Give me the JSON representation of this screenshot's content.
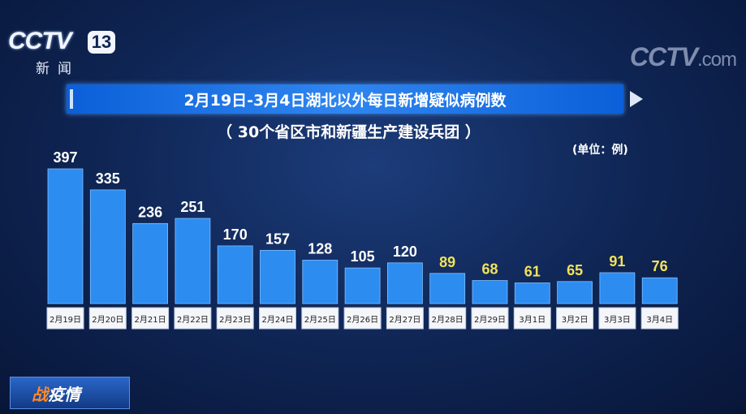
{
  "logo_left": {
    "brand": "CCTV",
    "channel": "13",
    "sub": "新闻"
  },
  "logo_right": {
    "brand": "CCTV",
    "suffix": ".com"
  },
  "bottom_logo": {
    "first": "战",
    "rest": "疫情"
  },
  "chart_data": {
    "type": "bar",
    "title": "2月19日-3月4日湖北以外每日新增疑似病例数",
    "subtitle": "（ 30个省区市和新疆生产建设兵团 ）",
    "unit": "(单位：例)",
    "categories": [
      "2月19日",
      "2月20日",
      "2月21日",
      "2月22日",
      "2月23日",
      "2月24日",
      "2月25日",
      "2月26日",
      "2月27日",
      "2月28日",
      "2月29日",
      "3月1日",
      "3月2日",
      "3月3日",
      "3月4日"
    ],
    "values": [
      397,
      335,
      236,
      251,
      170,
      157,
      128,
      105,
      120,
      89,
      68,
      61,
      65,
      91,
      76
    ],
    "label_colors": [
      "#ffffff",
      "#ffffff",
      "#ffffff",
      "#ffffff",
      "#ffffff",
      "#ffffff",
      "#ffffff",
      "#ffffff",
      "#ffffff",
      "#f3e25a",
      "#f3e25a",
      "#f3e25a",
      "#f3e25a",
      "#f3e25a",
      "#f3e25a"
    ],
    "bar_color": "#2d8cf0",
    "ylim": [
      0,
      397
    ],
    "grid": false
  }
}
